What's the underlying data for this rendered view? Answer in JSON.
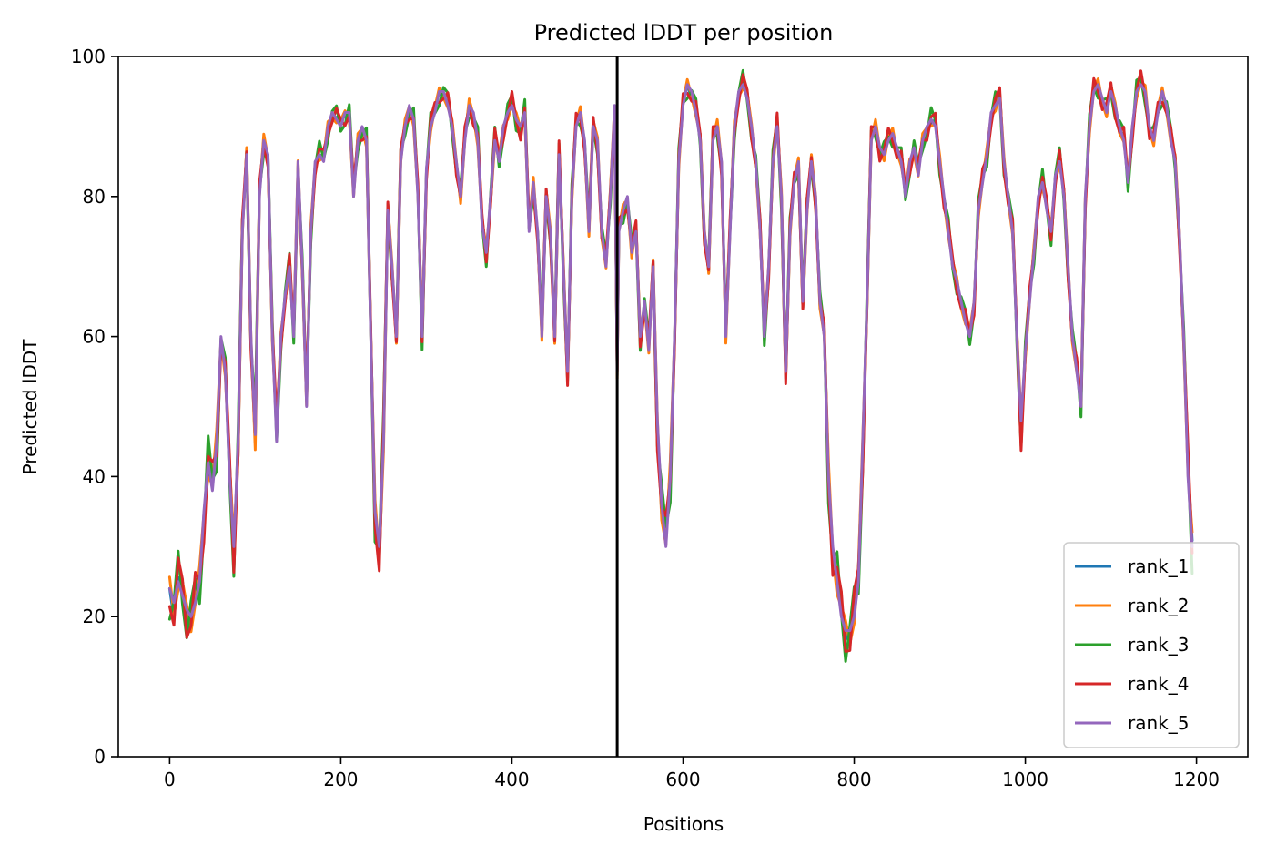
{
  "chart_data": {
    "type": "line",
    "title": "Predicted lDDT per position",
    "xlabel": "Positions",
    "ylabel": "Predicted lDDT",
    "xlim": [
      -60,
      1260
    ],
    "ylim": [
      0,
      100
    ],
    "xticks": [
      0,
      200,
      400,
      600,
      800,
      1000,
      1200
    ],
    "yticks": [
      0,
      20,
      40,
      60,
      80,
      100
    ],
    "grid": false,
    "legend_position": "lower-right",
    "vertical_line_x": 523,
    "series": [
      {
        "name": "rank_1",
        "color": "#1f77b4",
        "offset": -1.0
      },
      {
        "name": "rank_2",
        "color": "#ff7f0e",
        "offset": 1.0
      },
      {
        "name": "rank_3",
        "color": "#2ca02c",
        "offset": 2.0
      },
      {
        "name": "rank_4",
        "color": "#d62728",
        "offset": -2.0
      },
      {
        "name": "rank_5",
        "color": "#9467bd",
        "offset": 0.0
      }
    ],
    "profile_x": [
      0,
      5,
      10,
      15,
      20,
      25,
      30,
      35,
      40,
      45,
      50,
      55,
      60,
      65,
      70,
      75,
      80,
      85,
      90,
      95,
      100,
      105,
      110,
      115,
      120,
      125,
      130,
      135,
      140,
      145,
      150,
      155,
      160,
      165,
      170,
      175,
      180,
      185,
      190,
      195,
      200,
      205,
      210,
      215,
      220,
      225,
      230,
      235,
      240,
      245,
      250,
      255,
      260,
      265,
      270,
      275,
      280,
      285,
      290,
      295,
      300,
      305,
      310,
      315,
      320,
      325,
      330,
      335,
      340,
      345,
      350,
      355,
      360,
      365,
      370,
      375,
      380,
      385,
      390,
      395,
      400,
      405,
      410,
      415,
      420,
      425,
      430,
      435,
      440,
      445,
      450,
      455,
      460,
      465,
      470,
      475,
      480,
      485,
      490,
      495,
      500,
      505,
      510,
      515,
      520,
      523,
      525,
      530,
      535,
      540,
      545,
      550,
      555,
      560,
      565,
      570,
      575,
      580,
      585,
      590,
      595,
      600,
      605,
      610,
      615,
      620,
      625,
      630,
      635,
      640,
      645,
      650,
      655,
      660,
      665,
      670,
      675,
      680,
      685,
      690,
      695,
      700,
      705,
      710,
      715,
      720,
      725,
      730,
      735,
      740,
      745,
      750,
      755,
      760,
      765,
      770,
      775,
      780,
      785,
      790,
      795,
      800,
      805,
      810,
      815,
      820,
      825,
      830,
      835,
      840,
      845,
      850,
      855,
      860,
      865,
      870,
      875,
      880,
      885,
      890,
      895,
      900,
      905,
      910,
      915,
      920,
      925,
      930,
      935,
      940,
      945,
      950,
      955,
      960,
      965,
      970,
      975,
      980,
      985,
      990,
      995,
      1000,
      1005,
      1010,
      1015,
      1020,
      1025,
      1030,
      1035,
      1040,
      1045,
      1050,
      1055,
      1060,
      1065,
      1070,
      1075,
      1080,
      1085,
      1090,
      1095,
      1100,
      1105,
      1110,
      1115,
      1120,
      1125,
      1130,
      1135,
      1140,
      1145,
      1150,
      1155,
      1160,
      1165,
      1170,
      1175,
      1180,
      1185,
      1190,
      1195,
      1199
    ],
    "profile_y": [
      24,
      22,
      25,
      23,
      21,
      20,
      22,
      25,
      35,
      42,
      38,
      45,
      60,
      55,
      40,
      30,
      45,
      75,
      86,
      60,
      46,
      80,
      88,
      86,
      60,
      45,
      60,
      66,
      70,
      60,
      85,
      70,
      50,
      75,
      85,
      86,
      85,
      90,
      92,
      91,
      90,
      92,
      92,
      80,
      88,
      90,
      88,
      60,
      35,
      30,
      45,
      78,
      70,
      60,
      85,
      90,
      93,
      91,
      80,
      60,
      84,
      90,
      92,
      95,
      95,
      93,
      90,
      85,
      80,
      88,
      93,
      92,
      88,
      76,
      72,
      80,
      88,
      85,
      90,
      92,
      93,
      91,
      90,
      92,
      75,
      82,
      75,
      60,
      80,
      75,
      60,
      86,
      70,
      55,
      80,
      90,
      92,
      88,
      75,
      90,
      88,
      75,
      70,
      80,
      93,
      55,
      75,
      78,
      80,
      72,
      75,
      60,
      65,
      58,
      70,
      48,
      36,
      30,
      40,
      60,
      85,
      93,
      96,
      95,
      92,
      88,
      75,
      70,
      88,
      90,
      85,
      60,
      75,
      90,
      95,
      96,
      94,
      90,
      85,
      75,
      60,
      70,
      85,
      90,
      80,
      55,
      75,
      82,
      85,
      65,
      78,
      85,
      80,
      65,
      60,
      40,
      30,
      25,
      20,
      18,
      18,
      20,
      25,
      45,
      65,
      88,
      90,
      87,
      86,
      88,
      89,
      87,
      85,
      80,
      85,
      87,
      83,
      88,
      90,
      91,
      90,
      85,
      80,
      75,
      70,
      68,
      65,
      62,
      60,
      65,
      78,
      82,
      86,
      92,
      93,
      94,
      85,
      80,
      75,
      60,
      48,
      58,
      65,
      72,
      80,
      82,
      78,
      75,
      83,
      85,
      80,
      70,
      60,
      55,
      50,
      80,
      90,
      95,
      96,
      94,
      92,
      95,
      93,
      90,
      88,
      82,
      90,
      95,
      96,
      95,
      90,
      88,
      92,
      95,
      93,
      88,
      85,
      75,
      60,
      40,
      30
    ]
  }
}
